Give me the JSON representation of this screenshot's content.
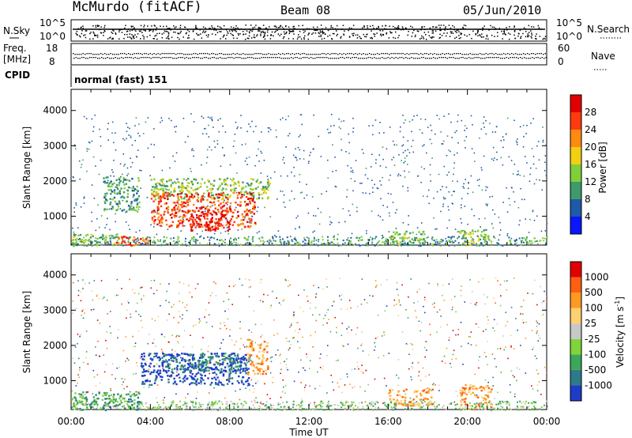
{
  "header": {
    "station": "McMurdo (fitACF)",
    "beam": "Beam 08",
    "date": "05/Jun/2010"
  },
  "panels": {
    "nsky_label": "N.Sky",
    "nsky_tick_top": "10^5",
    "nsky_tick_bottom": "10^0",
    "nsearch_label": "N.Search",
    "nsearch_tick_top": "10^5",
    "nsearch_tick_bottom": "10^0",
    "freq_label_1": "Freq.",
    "freq_label_2": "[MHz]",
    "freq_tick_top": "18",
    "freq_tick_bottom": "8",
    "nave_label": "Nave",
    "nave_tick_top": "60",
    "nave_tick_bottom": "0",
    "cpid_label": "CPID",
    "cpid_value": "normal (fast) 151"
  },
  "chart_data": [
    {
      "type": "heatmap",
      "title": "",
      "xlabel": "Time UT",
      "ylabel": "Slant Range [km]",
      "xlim": [
        0,
        24
      ],
      "ylim": [
        180,
        4600
      ],
      "x_tick_labels": [
        "00:00",
        "04:00",
        "08:00",
        "12:00",
        "16:00",
        "20:00",
        "00:00"
      ],
      "y_tick_labels": [
        "1000",
        "2000",
        "3000",
        "4000"
      ],
      "y_ticks": [
        1000,
        2000,
        3000,
        4000
      ],
      "colorbar": {
        "label": "Power [dB]",
        "tick_labels": [
          "4",
          "8",
          "12",
          "16",
          "20",
          "24",
          "28"
        ],
        "colors": [
          "#0a16ff",
          "#1e5aa8",
          "#3e9a6a",
          "#7fcf3a",
          "#f2cf12",
          "#ff8a10",
          "#ff3a10",
          "#e20000"
        ]
      },
      "regions": [
        {
          "t0": 0.0,
          "t1": 2.4,
          "r0": 180,
          "r1": 520,
          "level": 3
        },
        {
          "t0": 2.2,
          "t1": 3.9,
          "r0": 180,
          "r1": 450,
          "level": 6
        },
        {
          "t0": 1.6,
          "t1": 3.4,
          "r0": 1150,
          "r1": 2150,
          "level": 2
        },
        {
          "t0": 4.0,
          "t1": 10.0,
          "r0": 1500,
          "r1": 2100,
          "level": 3
        },
        {
          "t0": 4.0,
          "t1": 9.3,
          "r0": 700,
          "r1": 1700,
          "level": 6
        },
        {
          "t0": 6.0,
          "t1": 8.0,
          "r0": 600,
          "r1": 1200,
          "level": 7
        },
        {
          "t0": 16.0,
          "t1": 17.8,
          "r0": 200,
          "r1": 600,
          "level": 3
        },
        {
          "t0": 19.5,
          "t1": 21.2,
          "r0": 200,
          "r1": 650,
          "level": 3
        }
      ]
    },
    {
      "type": "heatmap",
      "title": "",
      "xlabel": "Time UT",
      "ylabel": "Slant Range [km]",
      "xlim": [
        0,
        24
      ],
      "ylim": [
        180,
        4600
      ],
      "x_tick_labels": [
        "00:00",
        "04:00",
        "08:00",
        "12:00",
        "16:00",
        "20:00",
        "00:00"
      ],
      "y_tick_labels": [
        "1000",
        "2000",
        "3000",
        "4000"
      ],
      "y_ticks": [
        1000,
        2000,
        3000,
        4000
      ],
      "colorbar": {
        "label": "Velocity [m s",
        "label_sup": "-1",
        "label_end": "]",
        "tick_labels": [
          "1000",
          "500",
          "100",
          "25",
          "-25",
          "-100",
          "-500",
          "-1000"
        ],
        "colors": [
          "#1e3cc8",
          "#2e7a8a",
          "#3aa85a",
          "#7fd43a",
          "#c8c8c8",
          "#ffd070",
          "#ff9a20",
          "#ff6010",
          "#e20000"
        ]
      },
      "regions": [
        {
          "t0": 0.0,
          "t1": 3.5,
          "r0": 180,
          "r1": 700,
          "level": 2
        },
        {
          "t0": 3.5,
          "t1": 9.0,
          "r0": 900,
          "r1": 1800,
          "level": 0
        },
        {
          "t0": 4.5,
          "t1": 8.8,
          "r0": 1300,
          "r1": 1800,
          "level": 1
        },
        {
          "t0": 8.8,
          "t1": 9.9,
          "r0": 1200,
          "r1": 2200,
          "level": 6
        },
        {
          "t0": 16.0,
          "t1": 18.2,
          "r0": 300,
          "r1": 800,
          "level": 6
        },
        {
          "t0": 19.6,
          "t1": 21.2,
          "r0": 200,
          "r1": 900,
          "level": 6
        }
      ]
    }
  ]
}
